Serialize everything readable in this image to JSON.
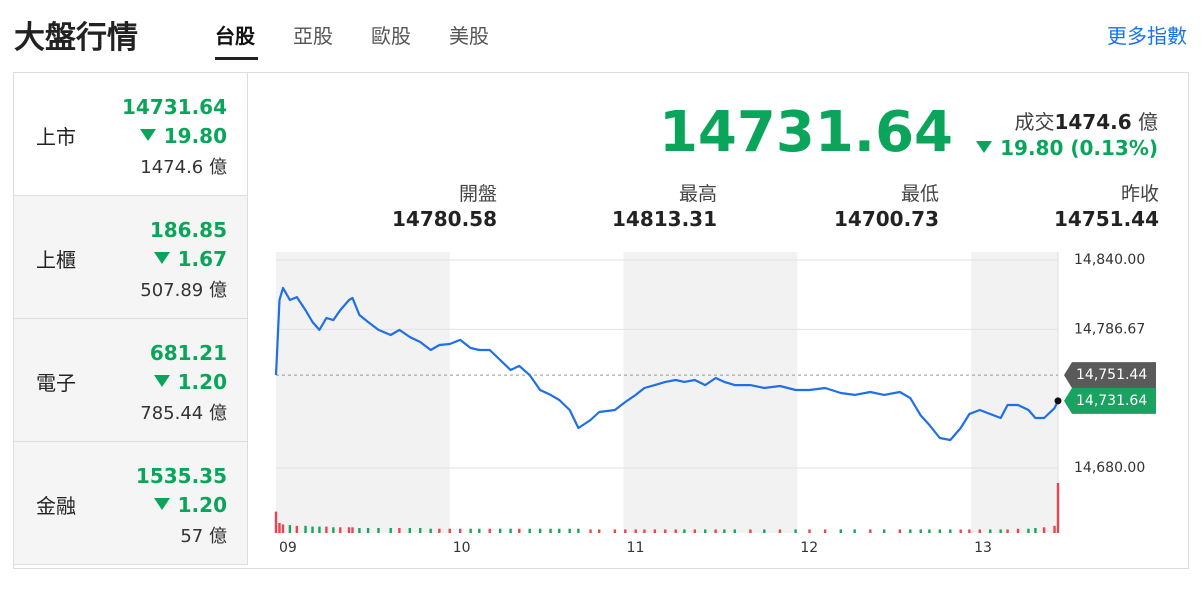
{
  "header": {
    "title": "大盤行情",
    "tabs": [
      "台股",
      "亞股",
      "歐股",
      "美股"
    ],
    "active_tab": 0,
    "more_link": "更多指數"
  },
  "markets": [
    {
      "name": "上市",
      "value": "14731.64",
      "change": "19.80",
      "volume": "1474.6 億"
    },
    {
      "name": "上櫃",
      "value": "186.85",
      "change": "1.67",
      "volume": "507.89 億"
    },
    {
      "name": "電子",
      "value": "681.21",
      "change": "1.20",
      "volume": "785.44 億"
    },
    {
      "name": "金融",
      "value": "1535.35",
      "change": "1.20",
      "volume": "57 億"
    }
  ],
  "active_market": 0,
  "quote": {
    "price": "14731.64",
    "volume_label": "成交",
    "volume": "1474.6",
    "volume_unit": "億",
    "change": "19.80 (0.13%)",
    "stats": [
      {
        "label": "開盤",
        "value": "14780.58"
      },
      {
        "label": "最高",
        "value": "14813.31"
      },
      {
        "label": "最低",
        "value": "14700.73"
      },
      {
        "label": "昨收",
        "value": "14751.44"
      }
    ]
  },
  "chart_data": {
    "type": "line",
    "x": [
      9.0,
      9.02,
      9.04,
      9.08,
      9.12,
      9.17,
      9.21,
      9.25,
      9.29,
      9.33,
      9.37,
      9.42,
      9.44,
      9.48,
      9.53,
      9.59,
      9.66,
      9.71,
      9.77,
      9.83,
      9.89,
      9.94,
      10.0,
      10.06,
      10.12,
      10.17,
      10.23,
      10.29,
      10.35,
      10.4,
      10.46,
      10.52,
      10.58,
      10.63,
      10.69,
      10.74,
      10.81,
      10.86,
      10.95,
      11.01,
      11.07,
      11.12,
      11.18,
      11.24,
      11.3,
      11.35,
      11.41,
      11.47,
      11.53,
      11.58,
      11.64,
      11.73,
      11.81,
      11.9,
      11.99,
      12.07,
      12.16,
      12.25,
      12.33,
      12.42,
      12.5,
      12.59,
      12.65,
      12.71,
      12.76,
      12.82,
      12.88,
      12.94,
      12.99,
      13.05,
      13.11,
      13.17,
      13.21,
      13.27,
      13.33,
      13.37,
      13.42,
      13.48,
      13.5
    ],
    "series": [
      {
        "color": "#1f6fe5",
        "values": [
          14751.5,
          14809.2,
          14818.5,
          14809.2,
          14811.5,
          14801.5,
          14792.3,
          14786.2,
          14795.4,
          14793.8,
          14801.5,
          14809.2,
          14810.8,
          14797.7,
          14792.3,
          14786.2,
          14782.3,
          14786.2,
          14780.8,
          14776.9,
          14770.8,
          14774.6,
          14775.4,
          14778.5,
          14772.3,
          14770.8,
          14770.8,
          14763.1,
          14755.4,
          14758.5,
          14751.5,
          14740.0,
          14736.2,
          14732.3,
          14724.6,
          14710.8,
          14716.9,
          14723.1,
          14724.6,
          14730.8,
          14736.2,
          14741.5,
          14743.8,
          14746.2,
          14747.7,
          14746.2,
          14747.7,
          14743.8,
          14749.2,
          14746.2,
          14743.8,
          14743.8,
          14741.5,
          14743.1,
          14740.0,
          14740.0,
          14741.5,
          14737.7,
          14736.2,
          14738.5,
          14736.2,
          14738.5,
          14733.8,
          14720.5,
          14713.1,
          14703.1,
          14701.5,
          14710.8,
          14721.5,
          14724.6,
          14721.5,
          14718.5,
          14728.5,
          14728.5,
          14724.6,
          14718.5,
          14718.5,
          14726.0,
          14731.64
        ]
      }
    ],
    "volume": [
      30,
      14,
      12,
      11,
      10,
      10,
      9,
      9,
      9,
      8,
      8,
      8,
      8,
      7,
      7,
      7,
      7,
      7,
      7,
      7,
      6,
      6,
      6,
      6,
      6,
      6,
      6,
      6,
      6,
      6,
      6,
      6,
      6,
      6,
      6,
      6,
      5,
      5,
      5,
      5,
      5,
      5,
      5,
      5,
      5,
      5,
      5,
      5,
      5,
      5,
      5,
      5,
      5,
      5,
      5,
      5,
      5,
      5,
      5,
      5,
      5,
      5,
      5,
      5,
      5,
      5,
      5,
      5,
      5,
      5,
      5,
      5,
      5,
      6,
      6,
      7,
      8,
      10,
      70
    ],
    "volume_lim": [
      0,
      70
    ],
    "up_color": "#e8464e",
    "down_color": "#1aa260",
    "xlim": [
      9,
      13.5
    ],
    "xticks": [
      {
        "value": 9,
        "label": "09"
      },
      10,
      11,
      12,
      13
    ],
    "ylim": [
      14680,
      14840
    ],
    "yticks": [
      {
        "value": 14680,
        "label": "14,680.00"
      },
      {
        "value": 14786.67,
        "label": "14,786.67"
      },
      {
        "value": 14840,
        "label": "14,840.00"
      }
    ],
    "grid": true,
    "prev_close_tag": {
      "value": 14751.44,
      "label": "14,751.44"
    },
    "last_tag": {
      "value": 14731.64,
      "label": "14,731.64"
    }
  }
}
